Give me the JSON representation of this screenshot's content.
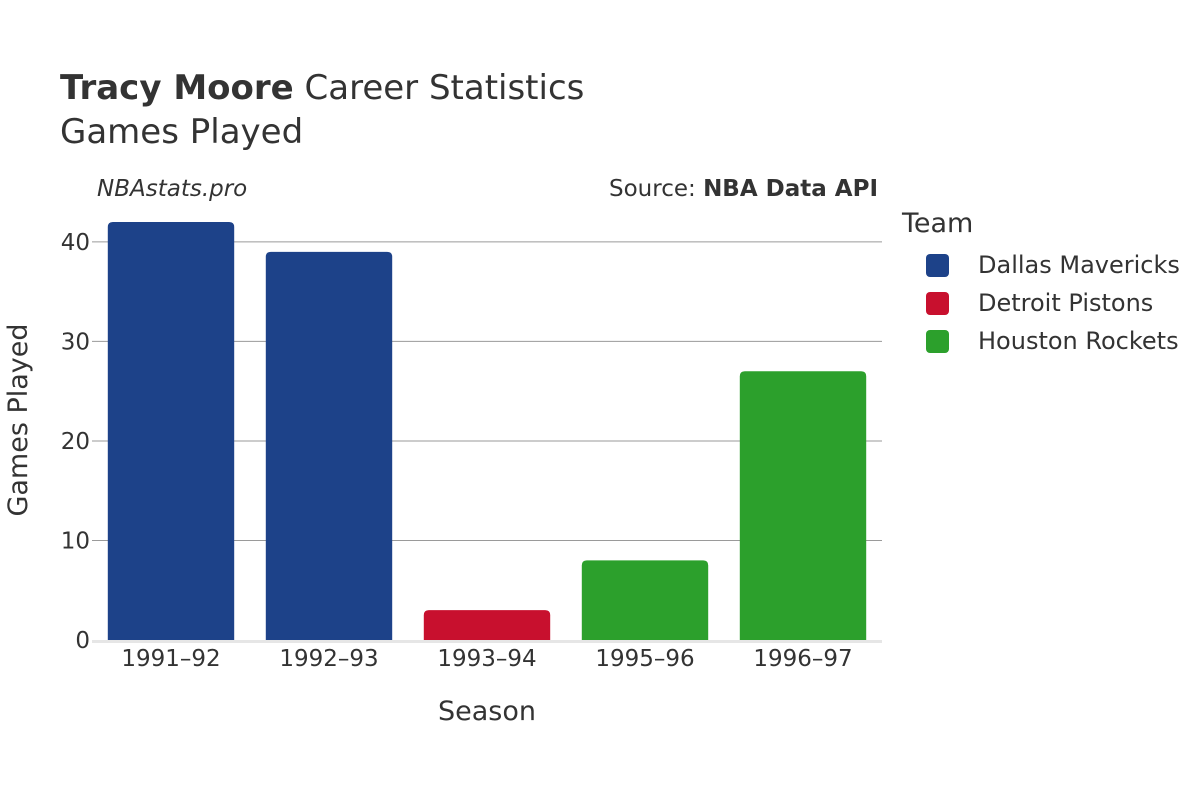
{
  "header": {
    "player": "Tracy Moore",
    "title_rest": "Career Statistics",
    "subtitle": "Games Played",
    "brand": "NBAstats.pro",
    "source_prefix": "Source: ",
    "source_name": "NBA Data API"
  },
  "legend": {
    "title": "Team",
    "items": [
      {
        "label": "Dallas Mavericks",
        "color": "#1d4289"
      },
      {
        "label": "Detroit Pistons",
        "color": "#c8102e"
      },
      {
        "label": "Houston Rockets",
        "color": "#2ca02c"
      }
    ]
  },
  "chart_data": {
    "type": "bar",
    "categories": [
      "1991–92",
      "1992–93",
      "1993–94",
      "1995–96",
      "1996–97"
    ],
    "values": [
      42,
      39,
      3,
      8,
      27
    ],
    "bar_teams": [
      "Dallas Mavericks",
      "Dallas Mavericks",
      "Detroit Pistons",
      "Houston Rockets",
      "Houston Rockets"
    ],
    "xlabel": "Season",
    "ylabel": "Games Played",
    "ylim": [
      0,
      42
    ],
    "yticks": [
      0,
      10,
      20,
      30,
      40
    ],
    "grid": true,
    "legend_position": "right"
  }
}
